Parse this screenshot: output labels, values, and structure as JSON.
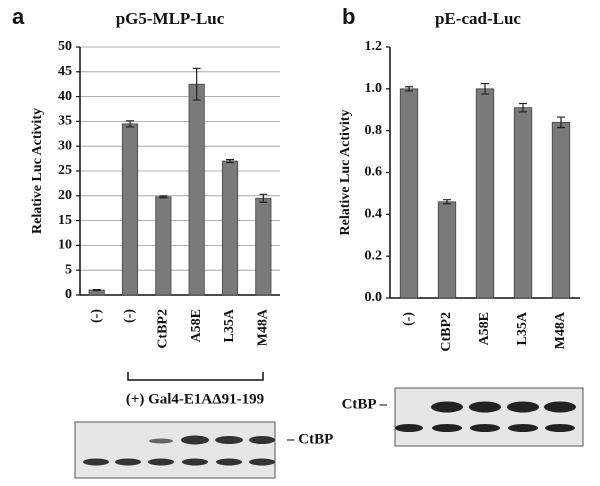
{
  "chart_data": [
    {
      "type": "bar",
      "panel_label": "a",
      "title": "pG5-MLP-Luc",
      "y_label": "Relative Luc Activity",
      "categories": [
        "(-)",
        "(-)",
        "CtBP2",
        "A58E",
        "L35A",
        "M48A"
      ],
      "values": [
        1,
        34.5,
        19.8,
        42.5,
        27,
        19.5
      ],
      "errors": [
        0.1,
        0.6,
        0.2,
        3.2,
        0.3,
        0.8
      ],
      "color": "#7a7a7a",
      "ylim": [
        0,
        50
      ],
      "yticks": [
        0,
        5,
        10,
        15,
        20,
        25,
        30,
        35,
        40,
        45,
        50
      ],
      "grid": true,
      "annotation": "(+) Gal4-E1AΔ91-199",
      "blot_label": "– CtBP"
    },
    {
      "type": "bar",
      "panel_label": "b",
      "title": "pE-cad-Luc",
      "y_label": "Relative Luc Activity",
      "categories": [
        "(-)",
        "CtBP2",
        "A58E",
        "L35A",
        "M48A"
      ],
      "values": [
        1.0,
        0.46,
        1.0,
        0.91,
        0.84
      ],
      "errors": [
        0.01,
        0.01,
        0.025,
        0.02,
        0.025
      ],
      "color": "#7a7a7a",
      "ylim": [
        0,
        1.2
      ],
      "yticks": [
        {
          "value": 0,
          "label": "0.0"
        },
        0.2,
        0.4,
        0.6,
        0.8,
        {
          "value": 1,
          "label": "1.0"
        },
        1.2
      ],
      "grid": false,
      "blot_label": "CtBP –"
    }
  ]
}
